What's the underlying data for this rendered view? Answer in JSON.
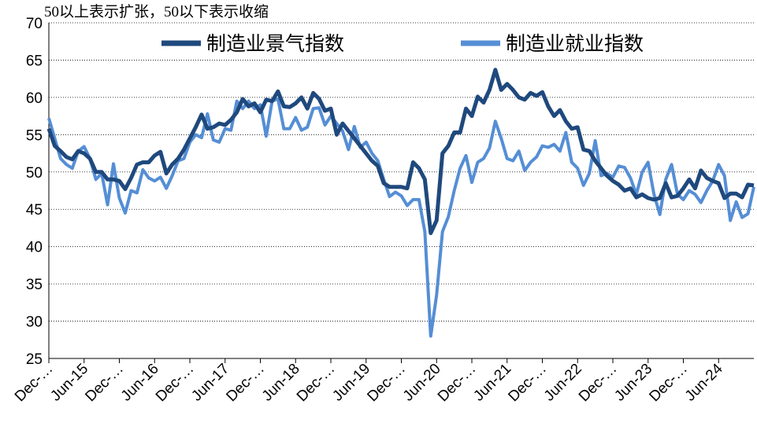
{
  "chart_data": {
    "type": "line",
    "annotation": "50以上表示扩张，50以下表示收缩",
    "categories": [
      "Dec-…",
      null,
      null,
      null,
      null,
      null,
      "Jun-15",
      null,
      null,
      null,
      null,
      null,
      "Dec-…",
      null,
      null,
      null,
      null,
      null,
      "Jun-16",
      null,
      null,
      null,
      null,
      null,
      "Dec-…",
      null,
      null,
      null,
      null,
      null,
      "Jun-17",
      null,
      null,
      null,
      null,
      null,
      "Dec-…",
      null,
      null,
      null,
      null,
      null,
      "Jun-18",
      null,
      null,
      null,
      null,
      null,
      "Dec-…",
      null,
      null,
      null,
      null,
      null,
      "Jun-19",
      null,
      null,
      null,
      null,
      null,
      "Dec-…",
      null,
      null,
      null,
      null,
      null,
      "Jun-20",
      null,
      null,
      null,
      null,
      null,
      "Dec-…",
      null,
      null,
      null,
      null,
      null,
      "Jun-21",
      null,
      null,
      null,
      null,
      null,
      "Dec-…",
      null,
      null,
      null,
      null,
      null,
      "Jun-22",
      null,
      null,
      null,
      null,
      null,
      "Dec-…",
      null,
      null,
      null,
      null,
      null,
      "Jun-23",
      null,
      null,
      null,
      null,
      null,
      "Dec-…",
      null,
      null,
      null,
      null,
      null,
      "Jun-24",
      null,
      null,
      null,
      null,
      null,
      null
    ],
    "series": [
      {
        "name": "制造业景气指数",
        "color": "#1f497d",
        "values": [
          55.8,
          53.5,
          52.8,
          52,
          51.7,
          52.8,
          52.5,
          51.8,
          50,
          50,
          49,
          49,
          48.8,
          47.7,
          49.2,
          51,
          51.3,
          51.3,
          52.2,
          52.7,
          49.8,
          51,
          51.8,
          53,
          54.5,
          56,
          57.7,
          55.8,
          56,
          56.5,
          56.3,
          57,
          58,
          59.8,
          58.8,
          59.2,
          58,
          59.7,
          59.5,
          60.8,
          58.8,
          58.7,
          59.2,
          60,
          58.5,
          60.6,
          59.8,
          58.2,
          58.5,
          55,
          56.5,
          55.5,
          54.5,
          53.5,
          52.5,
          51.5,
          50.8,
          48.5,
          48,
          48,
          48,
          47.8,
          51.3,
          50.5,
          49,
          41.8,
          43.5,
          52.5,
          53.5,
          55.3,
          55.3,
          58.5,
          57.5,
          60.1,
          59.3,
          61,
          63.7,
          61,
          61.8,
          61,
          60,
          59.7,
          60.6,
          60.2,
          60.7,
          58.8,
          57.5,
          58.3,
          56.8,
          55.8,
          56,
          53,
          52.8,
          51.5,
          50.5,
          49.5,
          48.8,
          48.3,
          47.5,
          47.8,
          46.6,
          47,
          46.5,
          46.3,
          46.5,
          48.5,
          46.6,
          46.8,
          47.8,
          49,
          47.8,
          50.2,
          49.2,
          48.8,
          48.5,
          46.5,
          47.1,
          47.1,
          46.6,
          48.3,
          48.2
        ]
      },
      {
        "name": "制造业就业指数",
        "color": "#558ed5",
        "values": [
          57.2,
          54.5,
          51.8,
          51,
          50.5,
          52.8,
          53.4,
          51.8,
          49,
          49.8,
          45.6,
          51.1,
          46.5,
          44.5,
          47.5,
          47.2,
          50.3,
          49.2,
          48.8,
          49.3,
          47.8,
          49.5,
          51.5,
          51.8,
          54,
          55,
          54.6,
          57.8,
          54.3,
          54,
          55.8,
          55.6,
          59.5,
          58.5,
          59.5,
          58.5,
          59,
          54.8,
          59.5,
          59.8,
          55.8,
          55.8,
          57.3,
          55.6,
          56,
          58.5,
          58.6,
          56.3,
          57.5,
          56.5,
          55.5,
          53,
          56.1,
          53.3,
          54,
          52.5,
          51.5,
          49,
          46.7,
          47.3,
          46.8,
          45.5,
          46.3,
          46.3,
          42,
          28,
          33.5,
          42,
          44,
          47.5,
          50.5,
          52.2,
          48.6,
          51.3,
          51.8,
          53.2,
          56.8,
          54.5,
          51.8,
          51.5,
          52.8,
          50.2,
          51.3,
          52,
          53.5,
          53.3,
          53.7,
          52.8,
          55.3,
          51.3,
          50.5,
          48.2,
          49.8,
          54.2,
          49.5,
          49.8,
          49.3,
          50.8,
          50.6,
          49.2,
          47,
          50,
          51.3,
          47,
          44.3,
          49,
          51,
          47,
          46.3,
          47.5,
          47,
          45.9,
          47.5,
          48.8,
          51,
          49.5,
          43.5,
          46,
          43.9,
          44.4,
          48
        ]
      }
    ],
    "ylim": [
      25,
      70
    ],
    "yticks": [
      25,
      30,
      35,
      40,
      45,
      50,
      55,
      60,
      65,
      70
    ],
    "grid": true,
    "legend": "top"
  }
}
